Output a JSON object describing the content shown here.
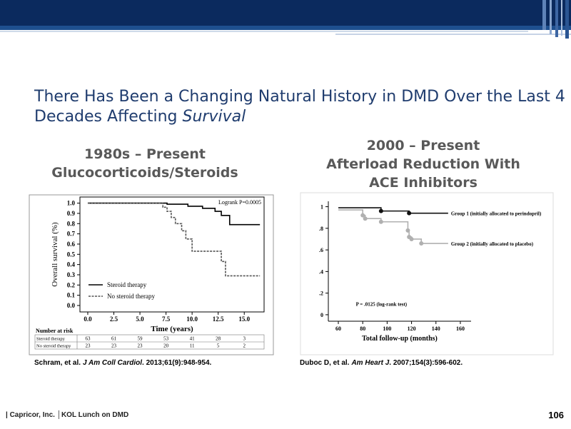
{
  "title": {
    "lines": [
      "There Has Been a Changing Natural History in DMD Over the Last 4",
      "Decades Affecting"
    ],
    "emphasis": "Survival"
  },
  "left_heading": [
    "1980s – Present",
    "Glucocorticoids/Steroids"
  ],
  "right_heading": [
    "2000 – Present",
    "Afterload Reduction With",
    "ACE Inhibitors"
  ],
  "left_citation": {
    "authors": "Schram, et al.",
    "journal": "J Am Coll Cardiol",
    "details": ". 2013;61(9):948-954."
  },
  "right_citation": {
    "authors": "Duboc D, et al.",
    "journal": "Am Heart J",
    "details": ". 2007;154(3):596-602."
  },
  "footer": "| Capricor, Inc. │KOL Lunch on DMD",
  "page_number": "106",
  "chart_data": [
    {
      "type": "step",
      "xlabel": "Time (years)",
      "ylabel": "Overall survival (%)",
      "annotation": "Logrank P=0.0005",
      "xlim": [
        -0.75,
        16.9
      ],
      "ylim": [
        -0.063,
        1.06
      ],
      "xticks": [
        {
          "value": 0,
          "label": "0.0"
        },
        2.5,
        {
          "value": 5,
          "label": "5.0"
        },
        7.5,
        {
          "value": 10,
          "label": "10.0"
        },
        12.5,
        {
          "value": 15,
          "label": "15.0"
        }
      ],
      "yticks": [
        {
          "value": 0,
          "label": "0.0"
        },
        0.1,
        0.2,
        0.3,
        0.4,
        0.5,
        0.6,
        0.7,
        0.8,
        0.9,
        {
          "value": 1,
          "label": "1.0"
        }
      ],
      "series": [
        {
          "name": "Steroid therapy",
          "color": "#000000",
          "line_style": "solid",
          "x": [
            0,
            7.6,
            9.6,
            11.0,
            12.2,
            12.8,
            13.6,
            16.5
          ],
          "values": [
            1.0,
            0.99,
            0.97,
            0.95,
            0.92,
            0.88,
            0.79,
            0.79
          ]
        },
        {
          "name": "No steroid therapy",
          "color": "#555555",
          "line_style": "dashed",
          "x": [
            0,
            7.2,
            7.6,
            8.0,
            8.4,
            9.0,
            9.4,
            10.0,
            12.5,
            12.8,
            13.2,
            16.5
          ],
          "values": [
            1.0,
            0.96,
            0.92,
            0.86,
            0.8,
            0.73,
            0.65,
            0.53,
            0.53,
            0.43,
            0.29,
            0.29
          ]
        }
      ],
      "risk_table": {
        "title": "Number at risk",
        "rows": [
          {
            "label": "Steroid therapy",
            "counts": [
              "63",
              "61",
              "59",
              "53",
              "41",
              "28",
              "3"
            ]
          },
          {
            "label": "No steroid therapy",
            "counts": [
              "23",
              "23",
              "23",
              "20",
              "11",
              "5",
              "2"
            ]
          }
        ]
      }
    },
    {
      "type": "step",
      "xlabel": "Total follow-up (months)",
      "annotation": "P = .0125 (log-rank test)",
      "xlim": [
        51.8,
        168.8
      ],
      "ylim": [
        -0.06,
        1.05
      ],
      "xticks": [
        60,
        80,
        100,
        120,
        140,
        160
      ],
      "yticks": [
        0,
        {
          "value": 0.2,
          "label": ".2"
        },
        {
          "value": 0.4,
          "label": ".4"
        },
        {
          "value": 0.6,
          "label": ".6"
        },
        {
          "value": 0.8,
          "label": ".8"
        },
        1
      ],
      "series": [
        {
          "name": "Group 1 (initially allocated to perindopril)",
          "color": "#111111",
          "line_style": "solid",
          "x": [
            60,
            95,
            118,
            150
          ],
          "values": [
            0.99,
            0.96,
            0.94,
            0.94
          ]
        },
        {
          "name": "Group 2 (initially allocated to placebo)",
          "color": "#b0b0b0",
          "line_style": "solid",
          "x": [
            60,
            80,
            82,
            95,
            117,
            118,
            120,
            128,
            150
          ],
          "values": [
            0.97,
            0.92,
            0.89,
            0.86,
            0.78,
            0.72,
            0.7,
            0.66,
            0.66
          ]
        }
      ]
    }
  ]
}
